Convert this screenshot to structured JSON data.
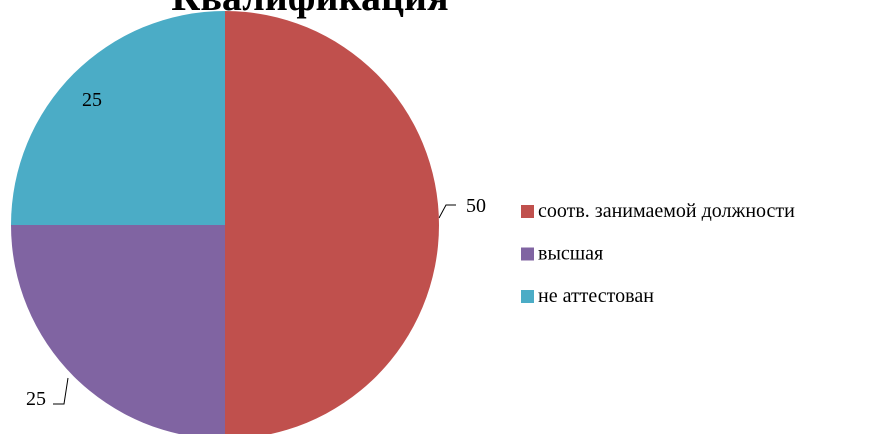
{
  "chart_data": {
    "type": "pie",
    "title": "Квалификация",
    "categories": [
      "соотв. занимаемой должности",
      "высшая",
      "не аттестован"
    ],
    "values": [
      50,
      25,
      25
    ],
    "colors": [
      "#c0504d",
      "#8064a2",
      "#4bacc6"
    ],
    "legend": "right"
  }
}
